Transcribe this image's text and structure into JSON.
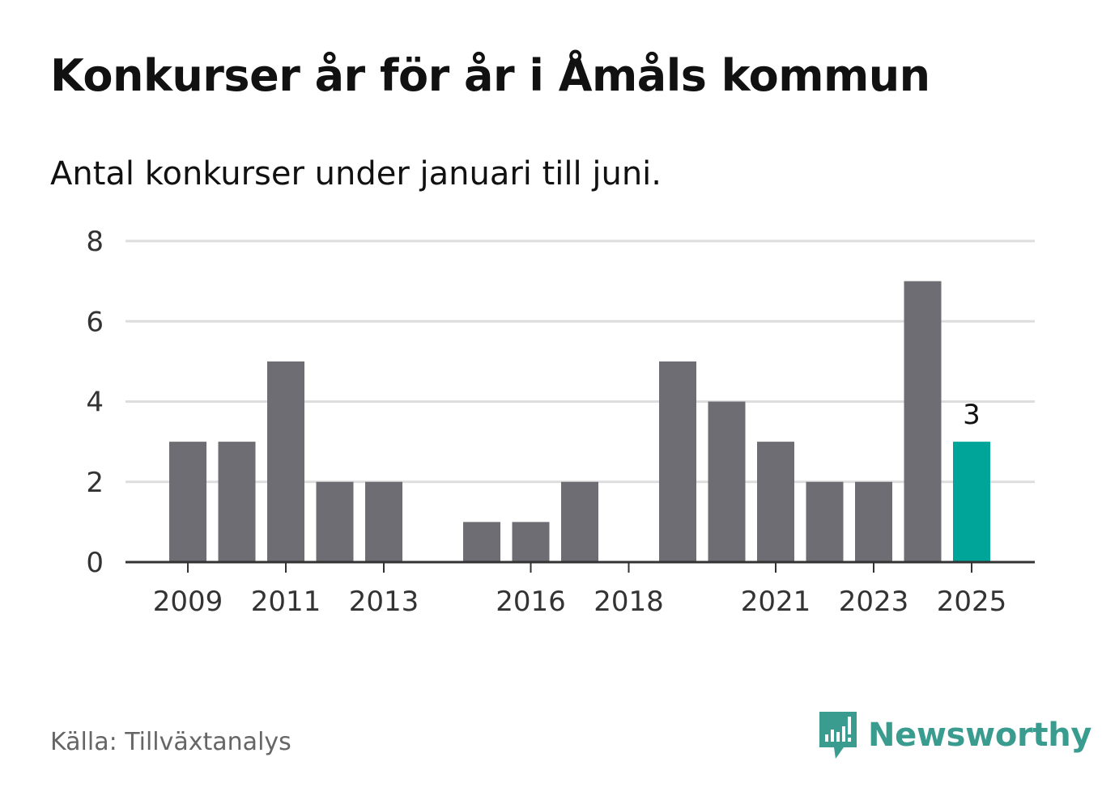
{
  "title": "Konkurser år för år i Åmåls kommun",
  "subtitle": "Antal konkurser under januari till juni.",
  "source": "Källa: Tillväxtanalys",
  "brand": {
    "name": "Newsworthy",
    "icon": "newsworthy-logo-icon",
    "color": "#3a9b8f"
  },
  "colors": {
    "bar": "#6e6d73",
    "highlight": "#00a59a",
    "grid": "#dddddd",
    "axis": "#333333"
  },
  "chart_data": {
    "type": "bar",
    "title": "Konkurser år för år i Åmåls kommun",
    "subtitle": "Antal konkurser under januari till juni.",
    "xlabel": "",
    "ylabel": "",
    "categories": [
      "2009",
      "2010",
      "2011",
      "2012",
      "2013",
      "2014",
      "2015",
      "2016",
      "2017",
      "2018",
      "2019",
      "2020",
      "2021",
      "2022",
      "2023",
      "2024",
      "2025"
    ],
    "values": [
      3,
      3,
      5,
      2,
      2,
      0,
      1,
      1,
      2,
      0,
      5,
      4,
      3,
      2,
      2,
      7,
      3
    ],
    "highlight_index": 16,
    "highlight_label": "3",
    "xticks": [
      "2009",
      "2011",
      "2013",
      "2016",
      "2018",
      "2021",
      "2023",
      "2025"
    ],
    "yticks": [
      0,
      2,
      4,
      6,
      8
    ],
    "ylim": [
      0,
      8
    ],
    "grid": true,
    "legend": "none"
  }
}
